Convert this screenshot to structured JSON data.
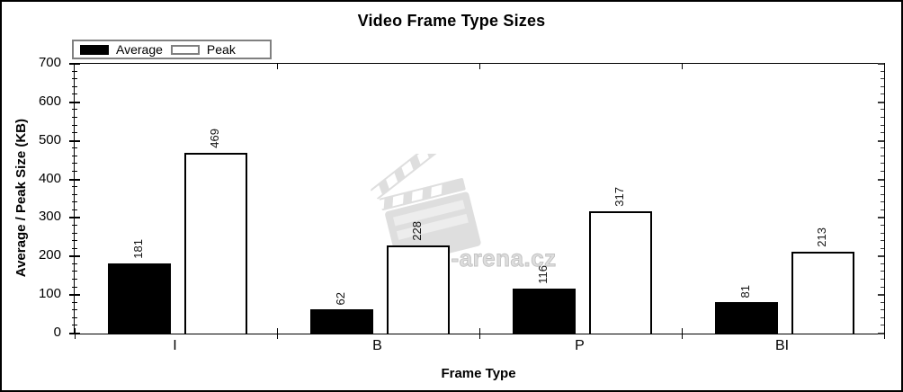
{
  "title": "Video Frame Type Sizes",
  "watermark": "Film-arena.cz",
  "chart_data": {
    "type": "bar",
    "categories": [
      "I",
      "B",
      "P",
      "BI"
    ],
    "series": [
      {
        "name": "Average",
        "values": [
          181,
          62,
          116,
          81
        ],
        "fill": "#000000"
      },
      {
        "name": "Peak",
        "values": [
          469,
          228,
          317,
          213
        ],
        "fill": "#ffffff"
      }
    ],
    "title": "Video Frame Type Sizes",
    "xlabel": "Frame Type",
    "ylabel": "Average / Peak Size (KB)",
    "ylim": [
      0,
      700
    ],
    "ytick_step": 100,
    "yminor_step": 20,
    "bar_value_labels": true,
    "value_label_rotation": -90,
    "legend_position": "top-left",
    "grid": false,
    "colors": {
      "bar_average": "#000000",
      "bar_peak": "#ffffff",
      "bar_border": "#000000",
      "legend_border": "#808080",
      "watermark_gray": "#d6d6d6"
    }
  }
}
